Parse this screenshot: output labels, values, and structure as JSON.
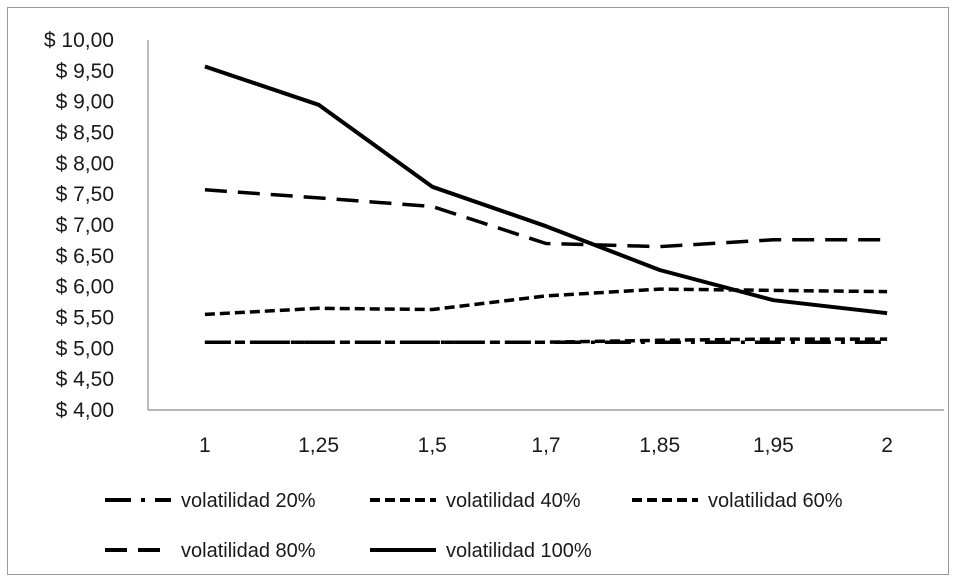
{
  "chart_data": {
    "type": "line",
    "title": "",
    "xlabel": "",
    "ylabel": "",
    "categories": [
      "1",
      "1,25",
      "1,5",
      "1,7",
      "1,85",
      "1,95",
      "2"
    ],
    "y_tick_labels": [
      "$ 4,00",
      "$ 4,50",
      "$ 5,00",
      "$ 5,50",
      "$ 6,00",
      "$ 6,50",
      "$ 7,00",
      "$ 7,50",
      "$ 8,00",
      "$ 8,50",
      "$ 9,00",
      "$ 9,50",
      "$ 10,00"
    ],
    "ylim": [
      4.0,
      10.0
    ],
    "grid": false,
    "legend_position": "bottom",
    "series": [
      {
        "name": "volatilidad 20%",
        "values": [
          5.1,
          5.1,
          5.1,
          5.1,
          5.1,
          5.1,
          5.1
        ],
        "dash": "long-dash-dot",
        "color": "#000000"
      },
      {
        "name": "volatilidad 40%",
        "values": [
          5.1,
          5.1,
          5.1,
          5.1,
          5.13,
          5.15,
          5.15
        ],
        "dash": "short-dash",
        "color": "#000000"
      },
      {
        "name": "volatilidad 60%",
        "values": [
          5.55,
          5.65,
          5.63,
          5.85,
          5.96,
          5.94,
          5.92
        ],
        "dash": "short-dash",
        "color": "#000000"
      },
      {
        "name": "volatilidad 80%",
        "values": [
          7.57,
          7.44,
          7.3,
          6.7,
          6.65,
          6.76,
          6.76
        ],
        "dash": "long-dash",
        "color": "#000000"
      },
      {
        "name": "volatilidad 100%",
        "values": [
          9.57,
          8.95,
          7.62,
          6.98,
          6.27,
          5.78,
          5.57
        ],
        "dash": "solid",
        "color": "#000000"
      }
    ]
  }
}
